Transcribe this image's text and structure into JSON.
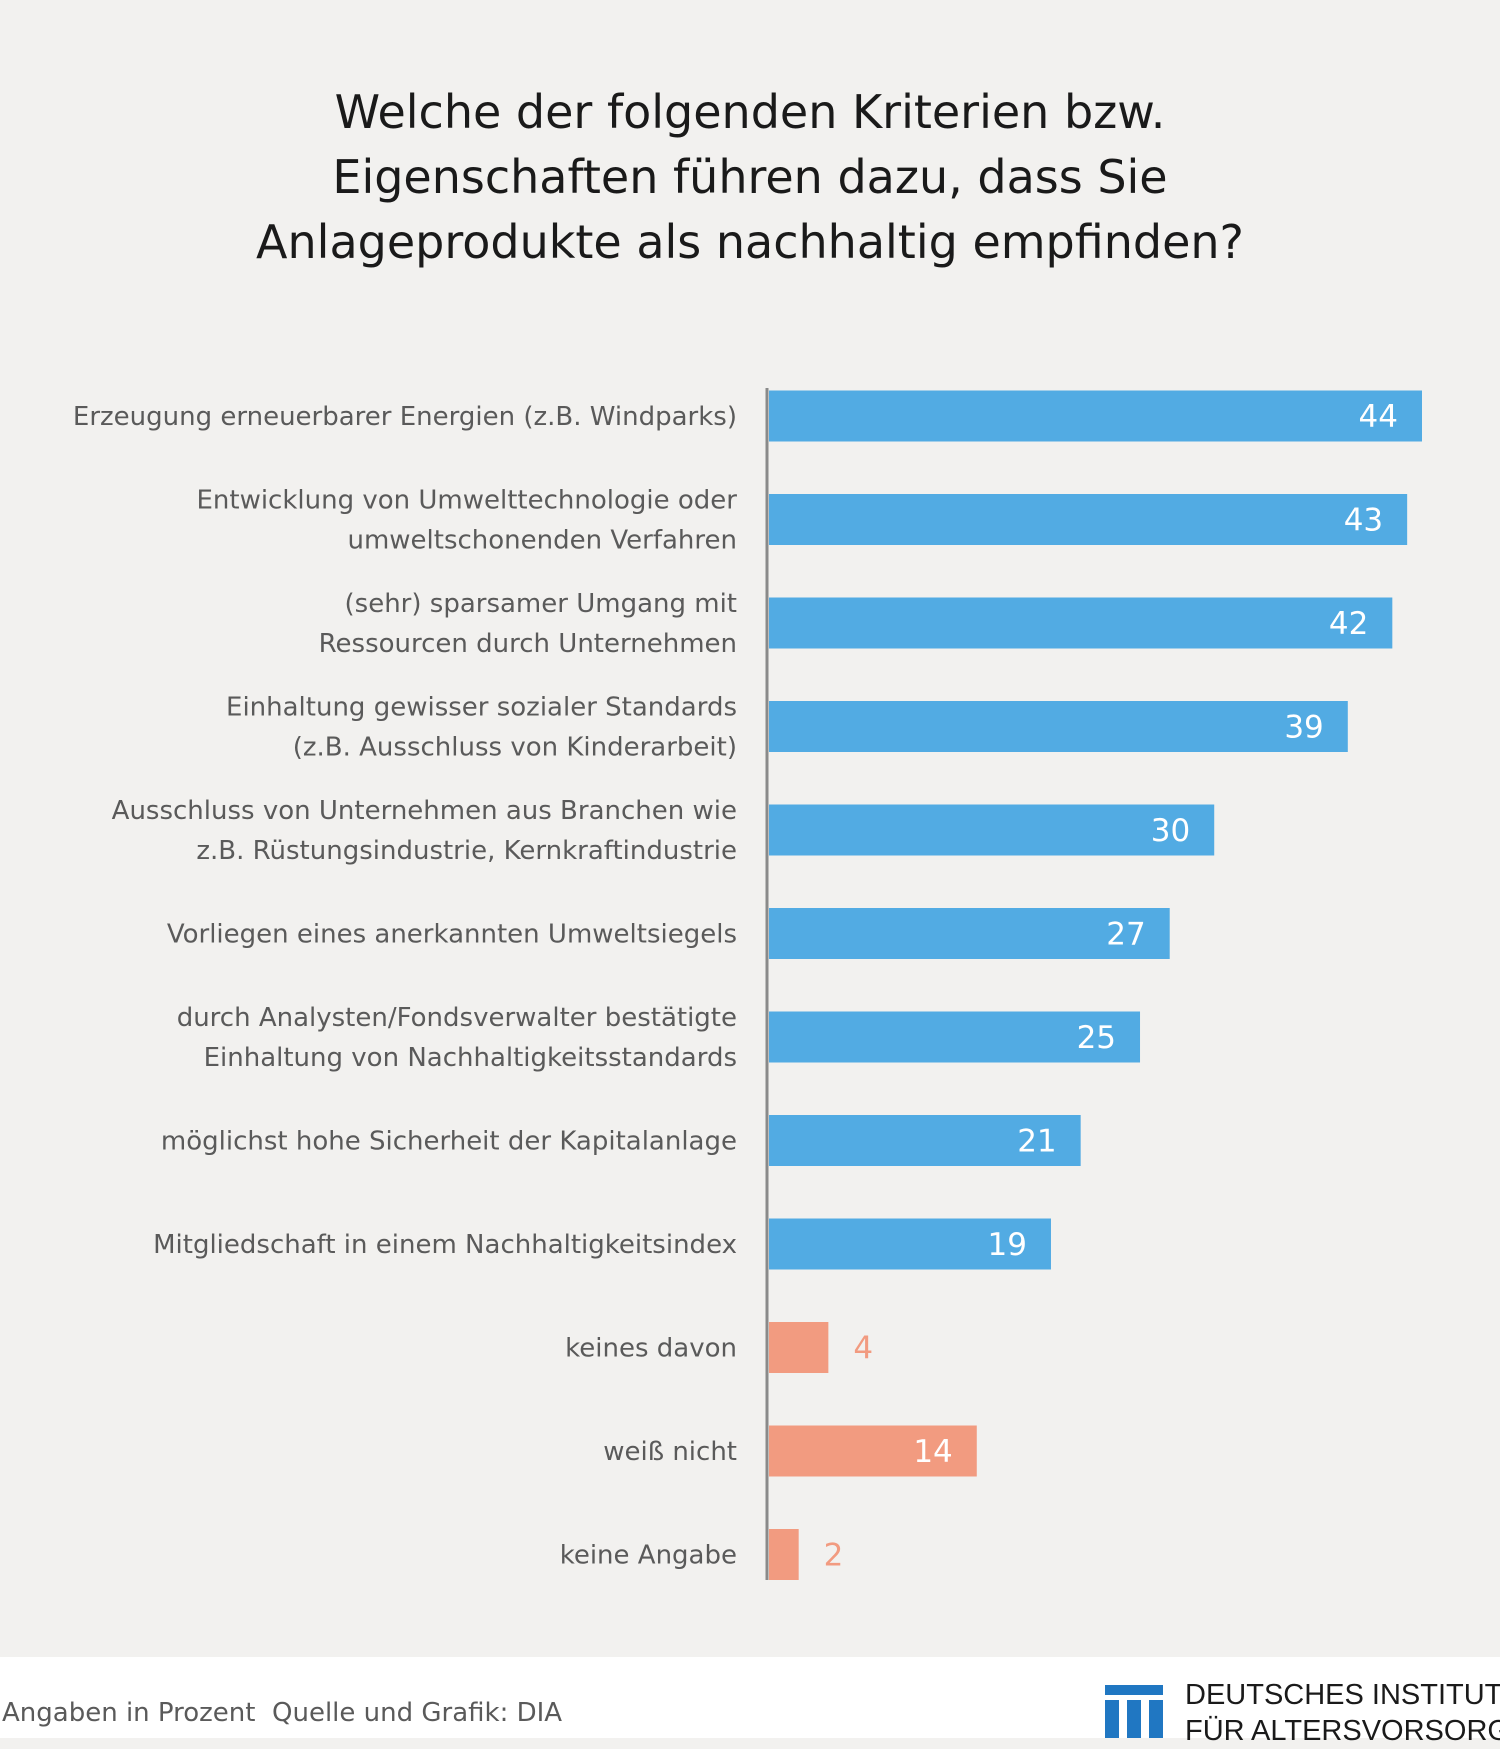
{
  "title_lines": [
    "Welche der folgenden Kriterien bzw.",
    "Eigenschaften führen dazu, dass Sie",
    "Anlageprodukte als nachhaltig empfinden?"
  ],
  "footer": {
    "note": "Angaben in Prozent  Quelle und Grafik: DIA",
    "logo_line1": "DEUTSCHES INSTITUT",
    "logo_line2": "FÜR ALTERSVORSORGE"
  },
  "colors": {
    "blue": "#52abe3",
    "salmon": "#f29b80",
    "axis": "#8a8a8a",
    "logo_blue": "#2077c2"
  },
  "chart_data": {
    "type": "bar",
    "orientation": "horizontal",
    "unit": "Prozent",
    "xlim": [
      0,
      44
    ],
    "grid": false,
    "categories": [
      [
        "Erzeugung erneuerbarer Energien (z.B. Windparks)"
      ],
      [
        "Entwicklung von Umwelttechnologie oder",
        "umweltschonenden Verfahren"
      ],
      [
        "(sehr) sparsamer Umgang mit",
        "Ressourcen durch Unternehmen"
      ],
      [
        "Einhaltung gewisser sozialer Standards",
        "(z.B. Ausschluss von Kinderarbeit)"
      ],
      [
        "Ausschluss von Unternehmen aus Branchen wie",
        "z.B. Rüstungsindustrie, Kernkraftindustrie"
      ],
      [
        "Vorliegen eines anerkannten Umweltsiegels"
      ],
      [
        "durch Analysten/Fondsverwalter bestätigte",
        "Einhaltung von Nachhaltigkeitsstandards"
      ],
      [
        "möglichst hohe Sicherheit der Kapitalanlage"
      ],
      [
        "Mitgliedschaft in einem Nachhaltigkeitsindex"
      ],
      [
        "keines davon"
      ],
      [
        "weiß nicht"
      ],
      [
        "keine Angabe"
      ]
    ],
    "values": [
      44,
      43,
      42,
      39,
      30,
      27,
      25,
      21,
      19,
      4,
      14,
      2
    ],
    "bar_colors": [
      "blue",
      "blue",
      "blue",
      "blue",
      "blue",
      "blue",
      "blue",
      "blue",
      "blue",
      "salmon",
      "salmon",
      "salmon"
    ]
  }
}
